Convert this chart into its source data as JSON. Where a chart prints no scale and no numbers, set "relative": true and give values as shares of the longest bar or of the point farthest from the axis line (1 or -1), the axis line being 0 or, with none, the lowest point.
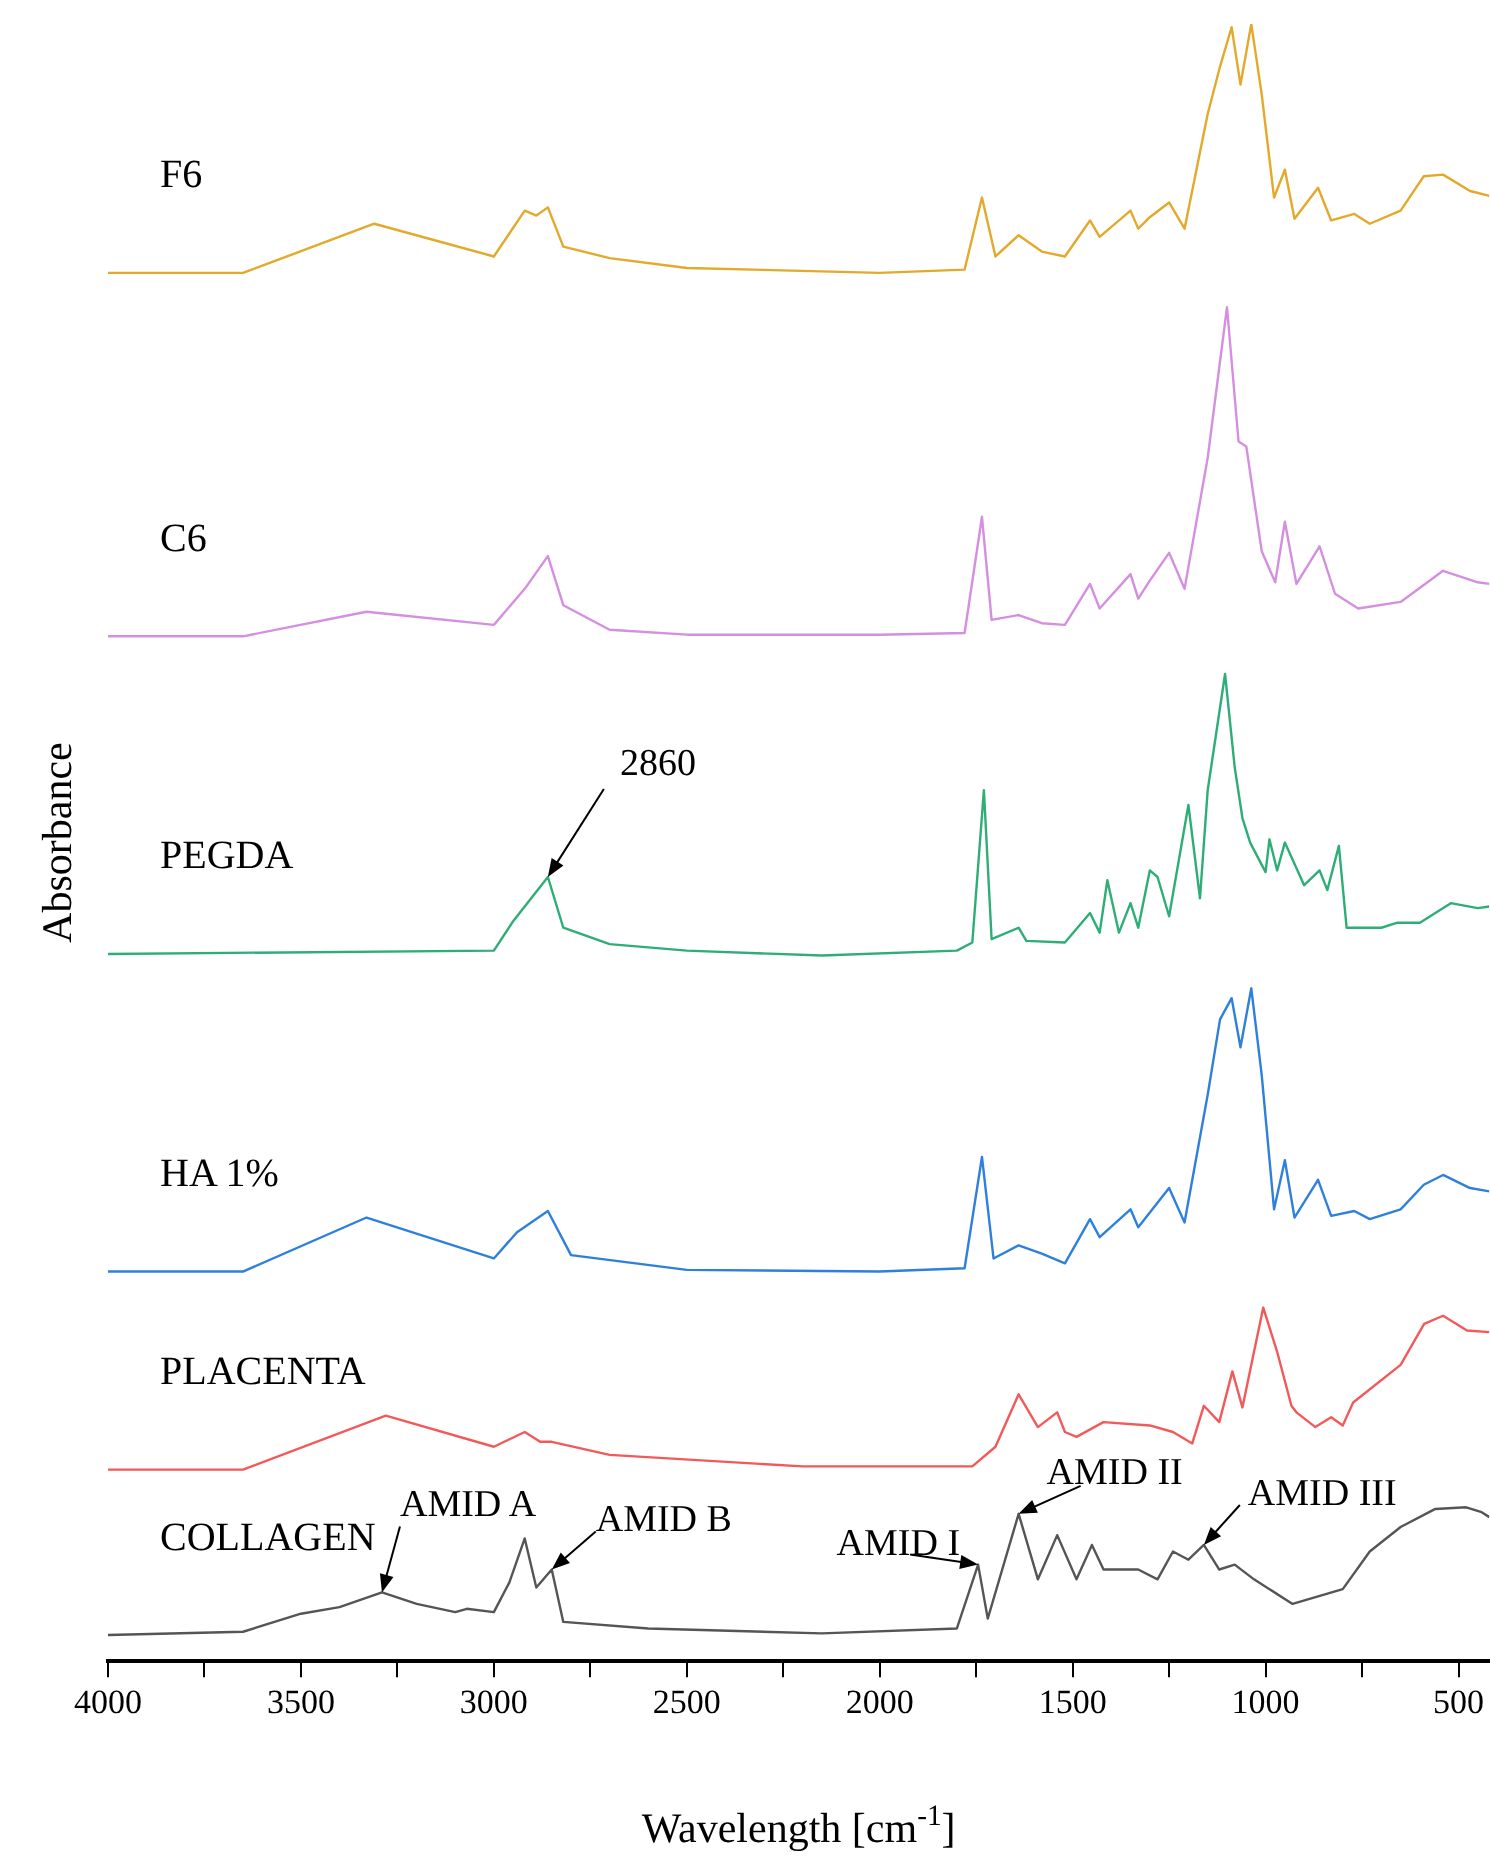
{
  "chart_data": {
    "type": "line",
    "relative": true,
    "xlabel": "Wavelength [cm$^{-1}$]",
    "ylabel": "Absorbance",
    "legend": false,
    "grid": false,
    "marker": "none",
    "xlim": [
      4000,
      420
    ],
    "xticks": [
      4000,
      {
        "value": 3750,
        "label": null
      },
      3500,
      {
        "value": 3250,
        "label": null
      },
      3000,
      {
        "value": 2750,
        "label": null
      },
      2500,
      {
        "value": 2250,
        "label": null
      },
      2000,
      {
        "value": 1750,
        "label": null
      },
      1500,
      {
        "value": 1250,
        "label": null
      },
      1000,
      {
        "value": 750,
        "label": null
      },
      500
    ],
    "annotations": [
      {
        "text": "2860",
        "x": 2860,
        "y": 0.479
      },
      {
        "text": "AMID A",
        "x": 3290,
        "y": 0.042
      },
      {
        "text": "AMID B",
        "x": 2850,
        "y": 0.056
      },
      {
        "text": "AMID I",
        "x": 1745,
        "y": 0.059
      },
      {
        "text": "AMID II",
        "x": 1640,
        "y": 0.09
      },
      {
        "text": "AMID III",
        "x": 1160,
        "y": 0.071
      }
    ],
    "series": [
      {
        "name": "F6",
        "color": "#e3a92b",
        "x": [
          4000,
          3650,
          3310,
          3000,
          2920,
          2890,
          2860,
          2820,
          2700,
          2500,
          2000,
          1780,
          1735,
          1700,
          1640,
          1580,
          1520,
          1455,
          1430,
          1350,
          1330,
          1300,
          1250,
          1210,
          1150,
          1118,
          1088,
          1065,
          1037,
          1010,
          978,
          950,
          925,
          864,
          830,
          770,
          730,
          650,
          590,
          540,
          470,
          420
        ],
        "values": [
          0.848,
          0.848,
          0.878,
          0.858,
          0.886,
          0.883,
          0.888,
          0.864,
          0.857,
          0.851,
          0.848,
          0.85,
          0.894,
          0.858,
          0.871,
          0.861,
          0.858,
          0.88,
          0.87,
          0.886,
          0.875,
          0.882,
          0.891,
          0.875,
          0.945,
          0.974,
          0.998,
          0.963,
          1.0,
          0.957,
          0.894,
          0.911,
          0.881,
          0.9,
          0.88,
          0.884,
          0.878,
          0.886,
          0.907,
          0.908,
          0.898,
          0.895
        ]
      },
      {
        "name": "C6",
        "color": "#d58fe0",
        "x": [
          4000,
          3650,
          3330,
          3000,
          2920,
          2860,
          2820,
          2700,
          2500,
          2000,
          1780,
          1735,
          1710,
          1640,
          1580,
          1520,
          1455,
          1430,
          1350,
          1330,
          1300,
          1250,
          1210,
          1150,
          1100,
          1070,
          1050,
          1010,
          975,
          950,
          920,
          860,
          820,
          760,
          650,
          540,
          450,
          420
        ],
        "values": [
          0.626,
          0.626,
          0.641,
          0.633,
          0.655,
          0.675,
          0.645,
          0.63,
          0.627,
          0.627,
          0.628,
          0.699,
          0.636,
          0.639,
          0.634,
          0.633,
          0.658,
          0.643,
          0.664,
          0.649,
          0.66,
          0.677,
          0.655,
          0.735,
          0.827,
          0.745,
          0.742,
          0.678,
          0.659,
          0.696,
          0.658,
          0.681,
          0.652,
          0.643,
          0.647,
          0.666,
          0.659,
          0.658
        ]
      },
      {
        "name": "PEGDA",
        "color": "#2eae76",
        "x": [
          4000,
          3000,
          2950,
          2860,
          2820,
          2700,
          2500,
          2150,
          1800,
          1760,
          1730,
          1710,
          1640,
          1620,
          1520,
          1455,
          1430,
          1410,
          1380,
          1350,
          1330,
          1300,
          1280,
          1250,
          1200,
          1170,
          1150,
          1105,
          1080,
          1060,
          1040,
          1000,
          990,
          970,
          950,
          900,
          860,
          840,
          810,
          790,
          700,
          660,
          600,
          520,
          450,
          420
        ],
        "values": [
          0.432,
          0.434,
          0.452,
          0.479,
          0.448,
          0.438,
          0.434,
          0.431,
          0.434,
          0.439,
          0.532,
          0.441,
          0.448,
          0.44,
          0.439,
          0.457,
          0.445,
          0.477,
          0.445,
          0.463,
          0.448,
          0.483,
          0.479,
          0.455,
          0.523,
          0.466,
          0.532,
          0.603,
          0.546,
          0.515,
          0.5,
          0.482,
          0.502,
          0.483,
          0.5,
          0.474,
          0.483,
          0.471,
          0.498,
          0.448,
          0.448,
          0.451,
          0.451,
          0.463,
          0.46,
          0.461
        ]
      },
      {
        "name": "HA 1%",
        "color": "#2f7fdc",
        "x": [
          4000,
          3650,
          3330,
          3000,
          2940,
          2860,
          2800,
          2500,
          2000,
          1780,
          1735,
          1705,
          1640,
          1580,
          1520,
          1455,
          1430,
          1350,
          1330,
          1250,
          1210,
          1150,
          1118,
          1088,
          1065,
          1037,
          1010,
          978,
          950,
          925,
          864,
          830,
          770,
          730,
          650,
          590,
          540,
          470,
          420
        ],
        "values": [
          0.238,
          0.238,
          0.271,
          0.246,
          0.262,
          0.275,
          0.248,
          0.239,
          0.238,
          0.24,
          0.308,
          0.246,
          0.254,
          0.249,
          0.243,
          0.27,
          0.259,
          0.276,
          0.265,
          0.289,
          0.268,
          0.346,
          0.392,
          0.405,
          0.375,
          0.411,
          0.358,
          0.276,
          0.306,
          0.271,
          0.294,
          0.272,
          0.275,
          0.27,
          0.276,
          0.291,
          0.297,
          0.289,
          0.287
        ]
      },
      {
        "name": "PLACENTA",
        "color": "#f25a5a",
        "x": [
          4000,
          3650,
          3280,
          3000,
          2920,
          2880,
          2850,
          2700,
          2200,
          1760,
          1700,
          1640,
          1590,
          1540,
          1520,
          1490,
          1420,
          1300,
          1240,
          1190,
          1160,
          1120,
          1086,
          1060,
          1006,
          970,
          933,
          920,
          871,
          830,
          800,
          773,
          650,
          589,
          540,
          478,
          420
        ],
        "values": [
          0.117,
          0.117,
          0.15,
          0.131,
          0.14,
          0.134,
          0.134,
          0.126,
          0.119,
          0.119,
          0.131,
          0.163,
          0.143,
          0.152,
          0.14,
          0.137,
          0.146,
          0.144,
          0.14,
          0.133,
          0.156,
          0.146,
          0.177,
          0.155,
          0.216,
          0.189,
          0.156,
          0.152,
          0.143,
          0.149,
          0.144,
          0.158,
          0.181,
          0.206,
          0.211,
          0.202,
          0.201
        ]
      },
      {
        "name": "COLLAGEN",
        "color": "#555555",
        "x": [
          4000,
          3650,
          3500,
          3400,
          3290,
          3200,
          3100,
          3070,
          3000,
          2960,
          2920,
          2890,
          2850,
          2820,
          2600,
          2150,
          1800,
          1745,
          1720,
          1640,
          1590,
          1540,
          1490,
          1450,
          1420,
          1330,
          1280,
          1240,
          1200,
          1160,
          1120,
          1080,
          1030,
          930,
          800,
          730,
          650,
          560,
          480,
          440,
          420
        ],
        "values": [
          0.016,
          0.018,
          0.029,
          0.033,
          0.042,
          0.035,
          0.03,
          0.032,
          0.03,
          0.048,
          0.075,
          0.045,
          0.056,
          0.024,
          0.02,
          0.017,
          0.02,
          0.059,
          0.026,
          0.09,
          0.05,
          0.077,
          0.05,
          0.071,
          0.056,
          0.056,
          0.05,
          0.067,
          0.062,
          0.071,
          0.056,
          0.059,
          0.05,
          0.035,
          0.044,
          0.067,
          0.082,
          0.093,
          0.094,
          0.091,
          0.088
        ]
      }
    ]
  }
}
